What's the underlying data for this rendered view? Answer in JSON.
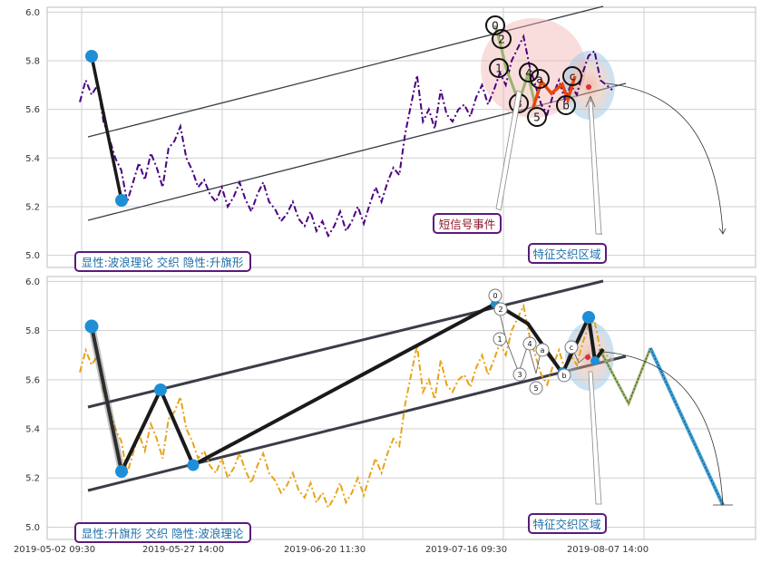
{
  "colors": {
    "top_price": "#4b0082",
    "bottom_price": "#e8a317",
    "channel": "#3a3d48",
    "wave": "#1a1a1a",
    "pivot": "#1e8fd6",
    "event_box_border": "#5b1a7a",
    "event_text": "#8b1a2a",
    "zone_text": "#1f6fa8",
    "red_zone": "#f2b3b3",
    "blue_zone": "#9fd0f2",
    "orange_path": "#e8470c",
    "green_path": "#9bb36a"
  },
  "chart_data": [
    {
      "type": "line",
      "panel": "top",
      "ylim": [
        4.95,
        6.02
      ],
      "yticks": [
        "5.0",
        "5.2",
        "5.4",
        "5.6",
        "5.8",
        "6.0"
      ],
      "grid": true,
      "series": [
        {
          "values": [
            5.63,
            5.72,
            5.66,
            5.7,
            5.55,
            5.48,
            5.4,
            5.35,
            5.22,
            5.3,
            5.38,
            5.31,
            5.42,
            5.36,
            5.28,
            5.44,
            5.47,
            5.53,
            5.4,
            5.35,
            5.28,
            5.31,
            5.25,
            5.22,
            5.28,
            5.2,
            5.24,
            5.3,
            5.23,
            5.18,
            5.25,
            5.3,
            5.22,
            5.19,
            5.14,
            5.17,
            5.22,
            5.15,
            5.12,
            5.18,
            5.1,
            5.14,
            5.08,
            5.12,
            5.18,
            5.1,
            5.14,
            5.2,
            5.13,
            5.21,
            5.28,
            5.22,
            5.3,
            5.36,
            5.33,
            5.5,
            5.62,
            5.74,
            5.55,
            5.6,
            5.52,
            5.68,
            5.58,
            5.55,
            5.6,
            5.62,
            5.57,
            5.65,
            5.7,
            5.62,
            5.68,
            5.75,
            5.7,
            5.8,
            5.85,
            5.9,
            5.78,
            5.7,
            5.62,
            5.58,
            5.66,
            5.72,
            5.64,
            5.7,
            5.66,
            5.75,
            5.82,
            5.84,
            5.72,
            5.7,
            5.68
          ]
        }
      ],
      "wave_labels": [
        "0",
        "2",
        "1",
        "3",
        "4",
        "a",
        "5",
        "b",
        "c"
      ],
      "annotations": [
        "短信号事件",
        "特征交织区域"
      ],
      "status_label": "显性:波浪理论 交织 隐性:升旗形"
    },
    {
      "type": "line",
      "panel": "bottom",
      "ylim": [
        4.95,
        6.02
      ],
      "yticks": [
        "5.0",
        "5.2",
        "5.4",
        "5.6",
        "5.8",
        "6.0"
      ],
      "xticks": [
        "2019-05-02 09:30",
        "2019-05-27 14:00",
        "2019-06-20 11:30",
        "2019-07-16 09:30",
        "2019-08-07 14:00"
      ],
      "grid": true,
      "series": [
        {
          "values": [
            5.63,
            5.72,
            5.66,
            5.7,
            5.55,
            5.48,
            5.4,
            5.35,
            5.22,
            5.3,
            5.38,
            5.31,
            5.42,
            5.36,
            5.28,
            5.44,
            5.47,
            5.53,
            5.4,
            5.35,
            5.28,
            5.31,
            5.25,
            5.22,
            5.28,
            5.2,
            5.24,
            5.3,
            5.23,
            5.18,
            5.25,
            5.3,
            5.22,
            5.19,
            5.14,
            5.17,
            5.22,
            5.15,
            5.12,
            5.18,
            5.1,
            5.14,
            5.08,
            5.12,
            5.18,
            5.1,
            5.14,
            5.2,
            5.13,
            5.21,
            5.28,
            5.22,
            5.3,
            5.36,
            5.33,
            5.5,
            5.62,
            5.74,
            5.55,
            5.6,
            5.52,
            5.68,
            5.58,
            5.55,
            5.6,
            5.62,
            5.57,
            5.65,
            5.7,
            5.62,
            5.68,
            5.75,
            5.7,
            5.8,
            5.85,
            5.9,
            5.78,
            5.7,
            5.62,
            5.58,
            5.66,
            5.72,
            5.64,
            5.7,
            5.66,
            5.75,
            5.82,
            5.84,
            5.72,
            5.7,
            5.68
          ]
        }
      ],
      "wave_labels": [
        "0",
        "2",
        "1",
        "4",
        "a",
        "3",
        "5",
        "b",
        "c"
      ],
      "annotations": [
        "特征交织区域"
      ],
      "status_label": "显性:升旗形 交织 隐性:波浪理论"
    }
  ]
}
